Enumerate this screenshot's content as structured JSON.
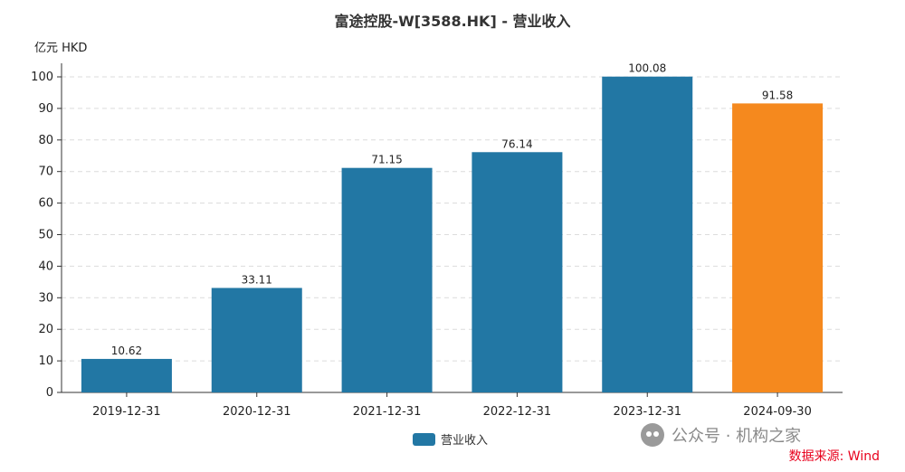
{
  "chart_data": {
    "type": "bar",
    "title": "富途控股-W[3588.HK] - 营业收入",
    "ylabel": "亿元  HKD",
    "xlabel": "",
    "categories": [
      "2019-12-31",
      "2020-12-31",
      "2021-12-31",
      "2022-12-31",
      "2023-12-31",
      "2024-09-30"
    ],
    "series": [
      {
        "name": "营业收入",
        "values": [
          10.62,
          33.11,
          71.15,
          76.14,
          100.08,
          91.58
        ],
        "data_labels": [
          "10.62",
          "33.11",
          "71.15",
          "76.14",
          "100.08",
          "91.58"
        ]
      }
    ],
    "ylim": [
      0,
      100
    ],
    "yticks": [
      0,
      10,
      20,
      30,
      40,
      50,
      60,
      70,
      80,
      90,
      100
    ],
    "grid": true,
    "legend_position": "bottom-center",
    "colors": {
      "primary": "#2277a4",
      "highlight": "#f5891e"
    },
    "highlight_categories": [
      "2024-09-30"
    ]
  },
  "watermark": {
    "icon": "wechat-icon",
    "text": "公众号 · 机构之家"
  },
  "source": "数据来源: Wind"
}
